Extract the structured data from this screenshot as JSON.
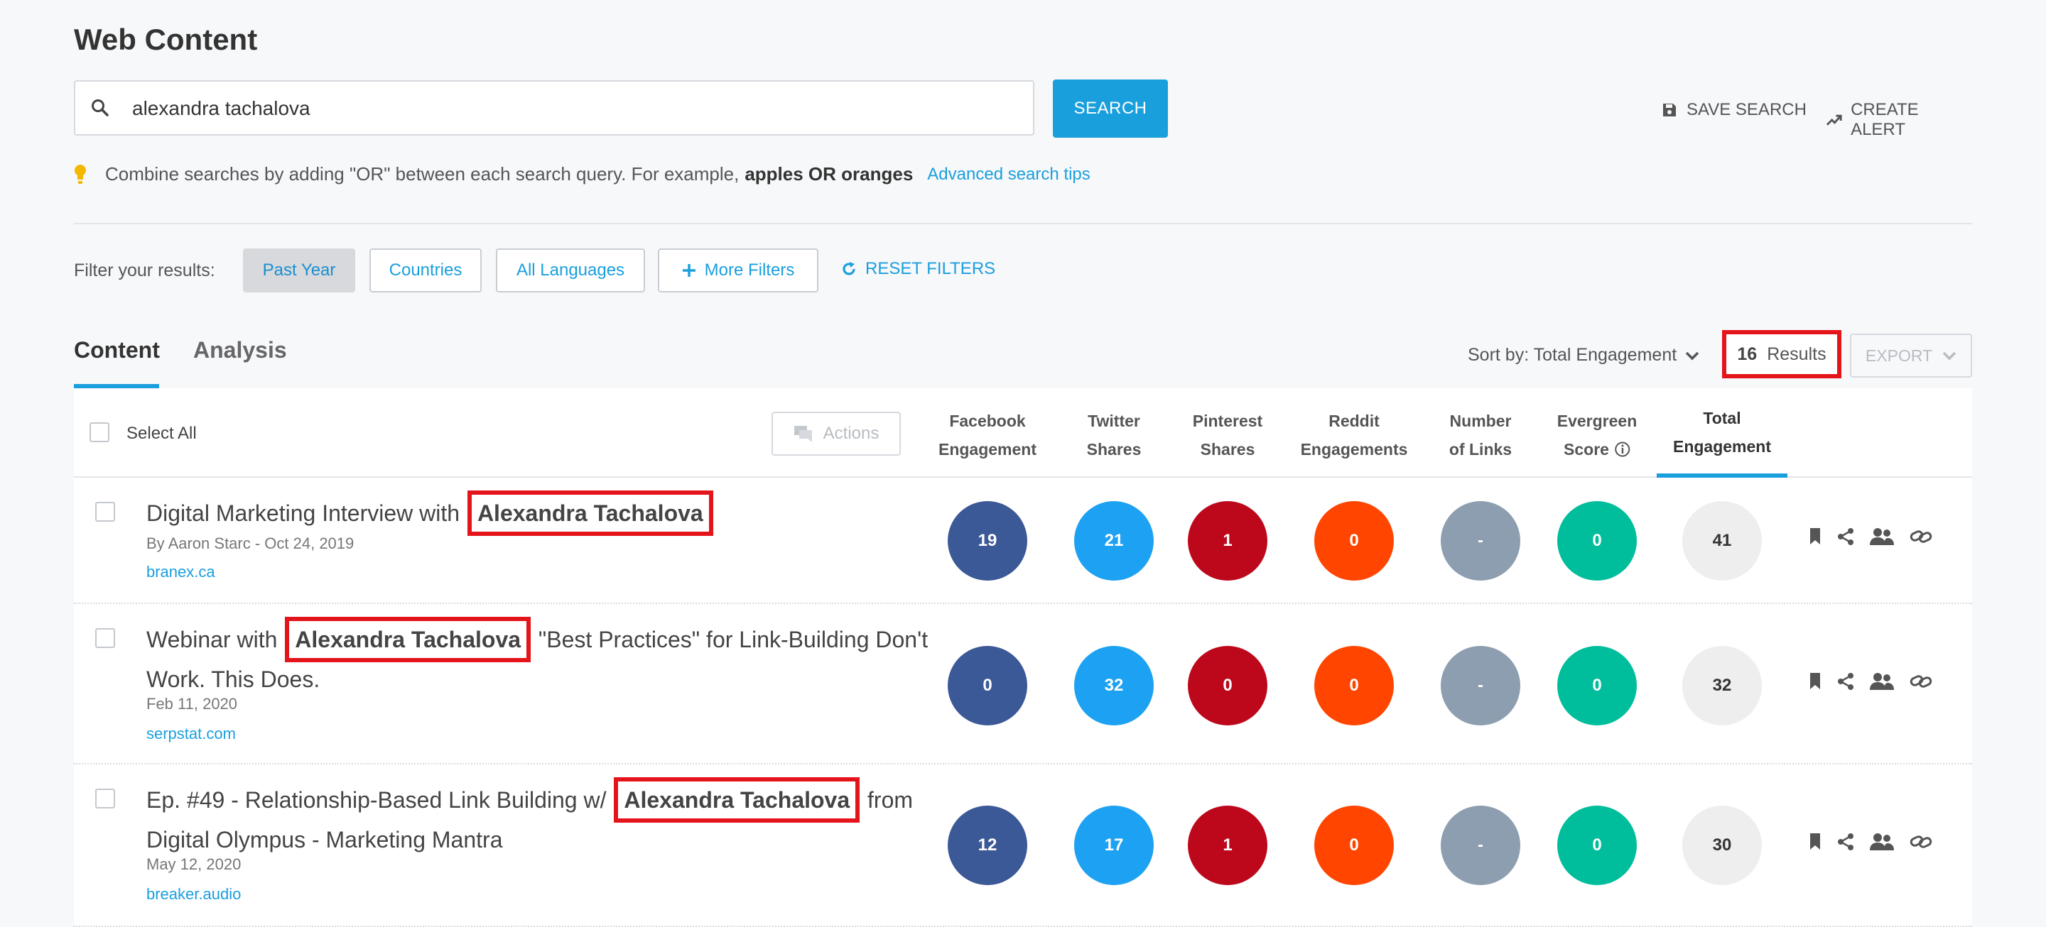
{
  "page": {
    "title": "Web Content"
  },
  "search": {
    "value": "alexandra tachalova",
    "button": "SEARCH"
  },
  "top_actions": {
    "save": "SAVE SEARCH",
    "alert": "CREATE ALERT"
  },
  "tip": {
    "text": "Combine searches by adding \"OR\" between each search query. For example,",
    "example": "apples OR oranges",
    "link": "Advanced search tips"
  },
  "filters": {
    "label": "Filter your results:",
    "buttons": [
      "Past Year",
      "Countries",
      "All Languages",
      "More Filters"
    ],
    "reset": "RESET FILTERS"
  },
  "tabs": {
    "content": "Content",
    "analysis": "Analysis"
  },
  "sort": {
    "label": "Sort by: Total Engagement"
  },
  "results": {
    "count": "16",
    "label": "Results"
  },
  "export": "EXPORT",
  "table": {
    "select_all": "Select All",
    "actions": "Actions",
    "columns": [
      [
        "Facebook",
        "Engagement"
      ],
      [
        "Twitter",
        "Shares"
      ],
      [
        "Pinterest",
        "Shares"
      ],
      [
        "Reddit",
        "Engagements"
      ],
      [
        "Number",
        "of Links"
      ],
      [
        "Evergreen",
        "Score"
      ],
      [
        "Total",
        "Engagement"
      ]
    ],
    "colors": {
      "facebook": "#3b5897",
      "twitter": "#1da1f2",
      "pinterest": "#bd081c",
      "reddit": "#ff4500",
      "links": "#8c9eaf",
      "evergreen": "#00be9b",
      "total": "#eeeeef"
    },
    "rows": [
      {
        "title_before": "Digital Marketing Interview with",
        "title_highlight": "Alexandra Tachalova",
        "title_after": "",
        "meta": "By Aaron Starc - Oct 24, 2019",
        "domain": "branex.ca",
        "facebook": "19",
        "twitter": "21",
        "pinterest": "1",
        "reddit": "0",
        "links": "-",
        "evergreen": "0",
        "total": "41"
      },
      {
        "title_before": "Webinar with",
        "title_highlight": "Alexandra Tachalova",
        "title_after": "\"Best Practices\" for Link-Building Don't Work. This Does.",
        "meta": "Feb 11, 2020",
        "domain": "serpstat.com",
        "facebook": "0",
        "twitter": "32",
        "pinterest": "0",
        "reddit": "0",
        "links": "-",
        "evergreen": "0",
        "total": "32"
      },
      {
        "title_before": "Ep. #49 - Relationship-Based Link Building w/",
        "title_highlight": "Alexandra Tachalova",
        "title_after": "from Digital Olympus - Marketing Mantra",
        "meta": "May 12, 2020",
        "domain": "breaker.audio",
        "facebook": "12",
        "twitter": "17",
        "pinterest": "1",
        "reddit": "0",
        "links": "-",
        "evergreen": "0",
        "total": "30"
      }
    ]
  }
}
